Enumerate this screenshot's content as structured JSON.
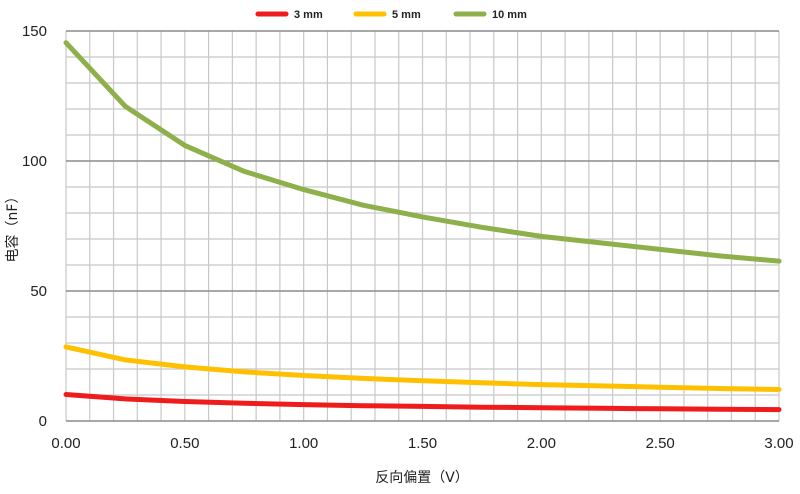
{
  "chart_data": {
    "type": "line",
    "title": "",
    "xlabel": "反向偏置（V）",
    "ylabel": "电容（nF）",
    "xlim": [
      0,
      3
    ],
    "ylim": [
      0,
      150
    ],
    "x_ticks": [
      "0.00",
      "0.50",
      "1.00",
      "1.50",
      "2.00",
      "2.50",
      "3.00"
    ],
    "y_ticks": [
      "0",
      "50",
      "100",
      "150"
    ],
    "grid": true,
    "legend_position": "top",
    "x": [
      0,
      0.25,
      0.5,
      0.75,
      1.0,
      1.25,
      1.5,
      1.75,
      2.0,
      2.25,
      2.5,
      2.75,
      3.0
    ],
    "series": [
      {
        "name": "3 mm",
        "color": "#ee1c1c",
        "values": [
          10.2,
          8.5,
          7.5,
          6.8,
          6.3,
          5.9,
          5.6,
          5.3,
          5.1,
          4.9,
          4.7,
          4.5,
          4.4
        ]
      },
      {
        "name": "5 mm",
        "color": "#ffc000",
        "values": [
          28.5,
          23.5,
          20.8,
          18.9,
          17.5,
          16.4,
          15.5,
          14.7,
          14.0,
          13.5,
          13.0,
          12.5,
          12.1
        ]
      },
      {
        "name": "10 mm",
        "color": "#8db04b",
        "values": [
          145.5,
          121,
          106,
          96,
          89,
          83,
          78.5,
          74.5,
          71,
          68.5,
          66,
          63.5,
          61.5
        ]
      }
    ]
  }
}
